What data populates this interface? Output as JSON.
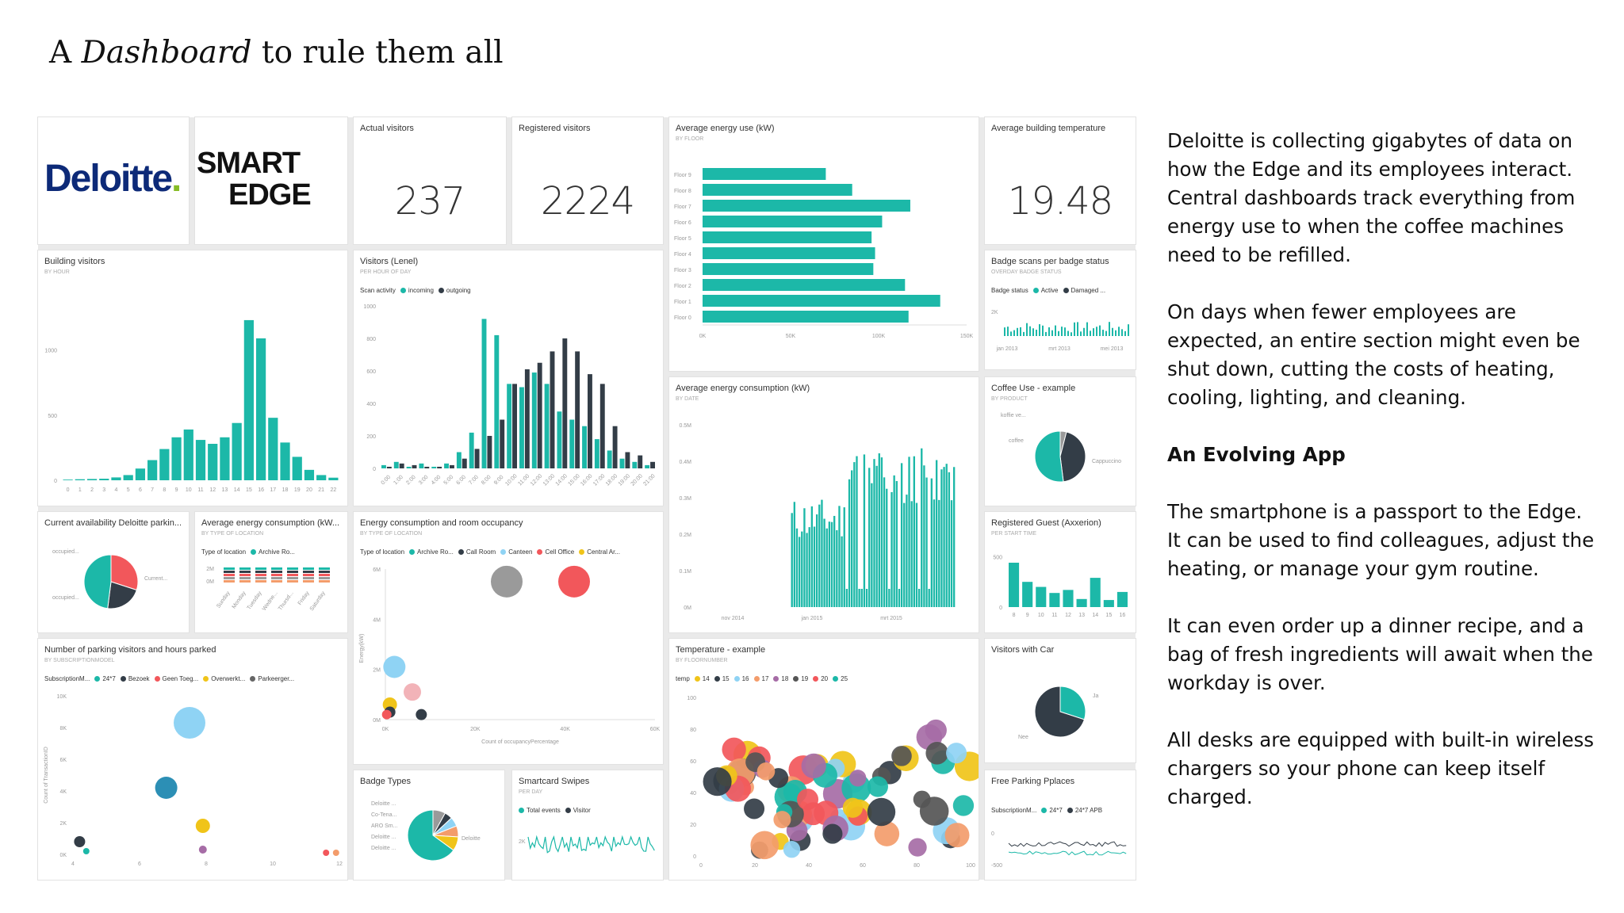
{
  "slide": {
    "title_pre": "A ",
    "title_em": "Dashboard",
    "title_post": " to rule them all"
  },
  "colors": {
    "teal": "#1cb8a8",
    "dark": "#333d47",
    "red": "#f2575b",
    "blue": "#8fd3f4",
    "yellow": "#f0c419",
    "grey": "#9a9a9a",
    "pink": "#f2b3b8",
    "purple": "#a66ca6",
    "orange": "#f39c6b"
  },
  "logos": {
    "deloitte_word": "Deloitte",
    "deloitte_dot": ".",
    "smart": "SMART",
    "edge": "EDGE"
  },
  "tiles": {
    "actual_visitors": {
      "title": "Actual visitors",
      "value": "237"
    },
    "registered_visitors": {
      "title": "Registered visitors",
      "value": "2224"
    },
    "avg_energy_use": {
      "title": "Average energy use (kW)",
      "subtitle": "BY FLOOR"
    },
    "avg_building_temp": {
      "title": "Average building temperature",
      "value": "19.48"
    },
    "building_visitors": {
      "title": "Building visitors",
      "subtitle": "BY HOUR"
    },
    "visitors_lenel": {
      "title": "Visitors (Lenel)",
      "subtitle": "PER HOUR OF DAY",
      "legend_label": "Scan activity",
      "legend": [
        "incoming",
        "outgoing"
      ]
    },
    "badge_scans": {
      "title": "Badge scans per badge status",
      "subtitle": "OVERDAY BADGE STATUS",
      "legend_label": "Badge status",
      "legend": [
        "Active",
        "Damaged ..."
      ],
      "xticks": [
        "jan 2013",
        "mrt 2013",
        "mei 2013"
      ]
    },
    "avg_energy_consumption": {
      "title": "Average energy consumption (kW)",
      "subtitle": "BY DATE"
    },
    "coffee_use": {
      "title": "Coffee Use - example",
      "subtitle": "BY PRODUCT",
      "labels": [
        "koffie ve...",
        "coffee",
        "Cappuccino"
      ]
    },
    "parking_availability": {
      "title": "Current availability Deloitte parkin...",
      "labels": [
        "occupied...",
        "occupied...",
        "Current..."
      ]
    },
    "avg_energy_location": {
      "title": "Average energy consumption (kW...",
      "subtitle": "BY TYPE OF LOCATION",
      "legend_label": "Type of location",
      "legend": [
        "Archive Ro..."
      ],
      "yticks": [
        "2M",
        "0M"
      ],
      "xticks": [
        "Sunday",
        "Monday",
        "Tuesday",
        "Wedne...",
        "Thursd...",
        "Friday",
        "Saturday"
      ]
    },
    "energy_room": {
      "title": "Energy consumption and room occupancy",
      "subtitle": "BY TYPE OF LOCATION",
      "legend_label": "Type of location",
      "legend": [
        "Archive Ro...",
        "Call Room",
        "Canteen",
        "Cell Office",
        "Central Ar..."
      ],
      "xlabel": "Count of occupancyPercentage",
      "ylabel": "Energy(kW)"
    },
    "registered_guest": {
      "title": "Registered Guest (Axxerion)",
      "subtitle": "PER START TIME"
    },
    "parking_visitors": {
      "title": "Number of parking visitors and hours parked",
      "subtitle": "BY SUBSCRIPTIONMODEL",
      "legend_label": "SubscriptionM...",
      "legend": [
        "24*7",
        "Bezoek",
        "Geen Toeg...",
        "Overwerkt...",
        "Parkeerger..."
      ],
      "ylabel": "Count of TransactionID"
    },
    "temperature": {
      "title": "Temperature - example",
      "subtitle": "BY FLOORNUMBER",
      "legend_label": "temp",
      "legend": [
        "14",
        "15",
        "16",
        "17",
        "18",
        "19",
        "20",
        "25"
      ]
    },
    "visitors_car": {
      "title": "Visitors with Car",
      "labels": [
        "Ja",
        "Nee"
      ]
    },
    "badge_types": {
      "title": "Badge Types",
      "labels": [
        "Deloitte ...",
        "Co-Tena...",
        "ARO Sm...",
        "Deloitte ...",
        "Deloitte ...",
        "Deloitte"
      ]
    },
    "smartcard": {
      "title": "Smartcard Swipes",
      "subtitle": "PER DAY",
      "legend": [
        "Total events",
        "Visitor"
      ]
    },
    "free_parking": {
      "title": "Free Parking Pplaces",
      "legend_label": "SubscriptionM...",
      "legend": [
        "24*7",
        "24*7 APB"
      ]
    }
  },
  "sidebar": {
    "para1": "Deloitte is collecting gigabytes of data on how the Edge and its employees interact. Central dashboards track everything from energy use to when the coffee machines need to be refilled.",
    "para2": "On days when fewer employees are expected, an entire section might even be shut down, cutting the costs of heating, cooling, lighting, and cleaning.",
    "heading": "An Evolving App",
    "para3": "The smartphone is a passport to the Edge. It can be used to find colleagues, adjust the heating, or manage your gym routine.",
    "para4": "It can even order up a dinner recipe, and a bag of fresh ingredients will await when the workday is over.",
    "para5": "All desks are equipped with built-in wireless chargers so your phone can keep itself charged."
  },
  "chart_data": [
    {
      "id": "energy-floor",
      "type": "bar",
      "orientation": "horizontal",
      "title": "Average energy use (kW)",
      "categories": [
        "Floor 9",
        "Floor 8",
        "Floor 7",
        "Floor 6",
        "Floor 5",
        "Floor 4",
        "Floor 3",
        "Floor 2",
        "Floor 1",
        "Floor 0"
      ],
      "values": [
        70,
        85,
        118,
        102,
        96,
        98,
        97,
        115,
        135,
        117
      ],
      "xticks": [
        "0K",
        "50K",
        "100K",
        "150K"
      ],
      "xlim": [
        0,
        150
      ]
    },
    {
      "id": "building-visitors",
      "type": "bar",
      "title": "Building visitors",
      "categories": [
        "0",
        "1",
        "2",
        "3",
        "4",
        "5",
        "6",
        "7",
        "8",
        "9",
        "10",
        "11",
        "12",
        "13",
        "14",
        "15",
        "16",
        "17",
        "18",
        "19",
        "20",
        "21",
        "22"
      ],
      "values": [
        5,
        8,
        10,
        12,
        22,
        40,
        90,
        155,
        240,
        330,
        390,
        310,
        280,
        330,
        440,
        1230,
        1090,
        480,
        290,
        180,
        80,
        40,
        20
      ],
      "yticks": [
        "0",
        "500",
        "1000"
      ],
      "ylim": [
        0,
        1400
      ]
    },
    {
      "id": "visitors-lenel",
      "type": "bar",
      "title": "Visitors (Lenel)",
      "categories": [
        "0:00",
        "1:00",
        "2:00",
        "3:00",
        "4:00",
        "5:00",
        "6:00",
        "7:00",
        "8:00",
        "9:00",
        "10:00",
        "11:00",
        "12:00",
        "13:00",
        "14:00",
        "15:00",
        "16:00",
        "17:00",
        "18:00",
        "19:00",
        "20:00",
        "21:00"
      ],
      "series": [
        {
          "name": "incoming",
          "values": [
            20,
            40,
            10,
            30,
            10,
            30,
            100,
            220,
            920,
            820,
            520,
            500,
            590,
            520,
            350,
            300,
            260,
            180,
            110,
            60,
            40,
            20
          ]
        },
        {
          "name": "outgoing",
          "values": [
            10,
            30,
            20,
            10,
            10,
            20,
            60,
            120,
            200,
            300,
            520,
            610,
            650,
            720,
            800,
            720,
            580,
            520,
            260,
            100,
            80,
            40
          ]
        }
      ],
      "yticks": [
        "0",
        "200",
        "400",
        "600",
        "800",
        "1000"
      ],
      "ylim": [
        0,
        1000
      ]
    },
    {
      "id": "energy-date",
      "type": "bar",
      "title": "Average energy consumption (kW)",
      "yticks": [
        "0M",
        "0.1M",
        "0.2M",
        "0.3M",
        "0.4M",
        "0.5M"
      ],
      "xticks": [
        "nov 2014",
        "jan 2015",
        "mrt 2015"
      ]
    },
    {
      "id": "registered-guest",
      "type": "bar",
      "title": "Registered Guest (Axxerion)",
      "categories": [
        "8",
        "9",
        "10",
        "11",
        "12",
        "13",
        "14",
        "15",
        "16"
      ],
      "values": [
        440,
        250,
        200,
        140,
        170,
        80,
        290,
        70,
        150
      ],
      "yticks": [
        "0",
        "500"
      ],
      "ylim": [
        0,
        550
      ]
    },
    {
      "id": "coffee-pie",
      "type": "pie",
      "labels": [
        "koffie ve...",
        "coffee",
        "Cappuccino"
      ],
      "values": [
        4,
        44,
        52
      ]
    },
    {
      "id": "parking-pie",
      "type": "pie",
      "labels": [
        "occupied...",
        "occupied...",
        "Current..."
      ],
      "values": [
        30,
        22,
        48
      ]
    },
    {
      "id": "car-pie",
      "type": "pie",
      "labels": [
        "Ja",
        "Nee"
      ],
      "values": [
        30,
        70
      ]
    },
    {
      "id": "badge-pie",
      "type": "pie",
      "labels": [
        "Deloitte ...",
        "Co-Tena...",
        "ARO Sm...",
        "Deloitte ...",
        "Deloitte ...",
        "Deloitte"
      ],
      "values": [
        8,
        5,
        6,
        7,
        9,
        65
      ]
    },
    {
      "id": "energy-room",
      "type": "scatter",
      "xticks": [
        "0K",
        "20K",
        "40K",
        "60K"
      ],
      "yticks": [
        "0M",
        "2M",
        "4M",
        "6M"
      ],
      "xlim": [
        0,
        60
      ],
      "ylim": [
        0,
        6
      ]
    },
    {
      "id": "parking-scatter",
      "type": "scatter",
      "xticks": [
        "4",
        "6",
        "8",
        "10",
        "12"
      ],
      "yticks": [
        "0K",
        "2K",
        "4K",
        "6K",
        "8K",
        "10K"
      ],
      "xlim": [
        4,
        12
      ],
      "ylim": [
        0,
        10
      ]
    },
    {
      "id": "temperature-scatter",
      "type": "scatter",
      "xticks": [
        "0",
        "20",
        "40",
        "60",
        "80",
        "100"
      ],
      "yticks": [
        "0",
        "20",
        "40",
        "60",
        "80",
        "100"
      ],
      "xlim": [
        0,
        100
      ],
      "ylim": [
        0,
        100
      ]
    }
  ]
}
